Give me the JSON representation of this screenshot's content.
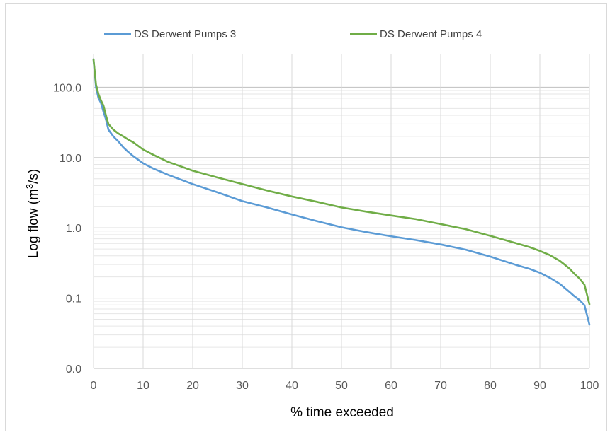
{
  "chart_data": {
    "type": "line",
    "xlabel": "% time exceeded",
    "ylabel_main": "Log flow (m",
    "ylabel_sup": "3",
    "ylabel_tail": "/s)",
    "yscale": "log",
    "xlim": [
      0,
      100
    ],
    "ylim": [
      0.01,
      300
    ],
    "x_ticks": [
      0,
      10,
      20,
      30,
      40,
      50,
      60,
      70,
      80,
      90,
      100
    ],
    "x_tick_labels": [
      "0",
      "10",
      "20",
      "30",
      "40",
      "50",
      "60",
      "70",
      "80",
      "90",
      "100"
    ],
    "y_ticks": [
      0.01,
      0.1,
      1,
      10,
      100
    ],
    "y_tick_labels": [
      "0.0",
      "0.1",
      "1.0",
      "10.0",
      "100.0"
    ],
    "grid": true,
    "legend_position": "top",
    "series": [
      {
        "name": "DS Derwent Pumps 3",
        "color": "#5b9bd5",
        "x": [
          0,
          0.5,
          1,
          1.5,
          2,
          2.5,
          3,
          4,
          5,
          6,
          7,
          8,
          10,
          12,
          15,
          20,
          25,
          30,
          35,
          40,
          45,
          50,
          55,
          60,
          65,
          70,
          75,
          80,
          85,
          88,
          90,
          92,
          94,
          95,
          96,
          97,
          98,
          99,
          100
        ],
        "y": [
          250,
          100,
          70,
          60,
          45,
          35,
          25,
          20,
          17,
          14,
          12,
          10.5,
          8.3,
          7,
          5.7,
          4.2,
          3.2,
          2.4,
          1.95,
          1.55,
          1.25,
          1.02,
          0.87,
          0.76,
          0.67,
          0.58,
          0.49,
          0.39,
          0.3,
          0.26,
          0.23,
          0.195,
          0.16,
          0.14,
          0.122,
          0.106,
          0.094,
          0.079,
          0.042
        ]
      },
      {
        "name": "DS Derwent Pumps 4",
        "color": "#70ad47",
        "x": [
          0,
          0.5,
          1,
          1.5,
          2,
          2.5,
          3,
          4,
          5,
          6,
          7,
          8,
          10,
          12,
          15,
          20,
          25,
          30,
          35,
          40,
          45,
          50,
          55,
          60,
          65,
          70,
          75,
          80,
          85,
          88,
          90,
          92,
          94,
          95,
          96,
          97,
          98,
          99,
          100
        ],
        "y": [
          250,
          110,
          80,
          65,
          55,
          40,
          30,
          25,
          22,
          20,
          18,
          16.5,
          13,
          11,
          8.7,
          6.5,
          5.2,
          4.2,
          3.4,
          2.8,
          2.35,
          1.95,
          1.7,
          1.5,
          1.33,
          1.13,
          0.96,
          0.77,
          0.61,
          0.53,
          0.47,
          0.41,
          0.34,
          0.3,
          0.262,
          0.221,
          0.19,
          0.155,
          0.082
        ]
      }
    ]
  }
}
